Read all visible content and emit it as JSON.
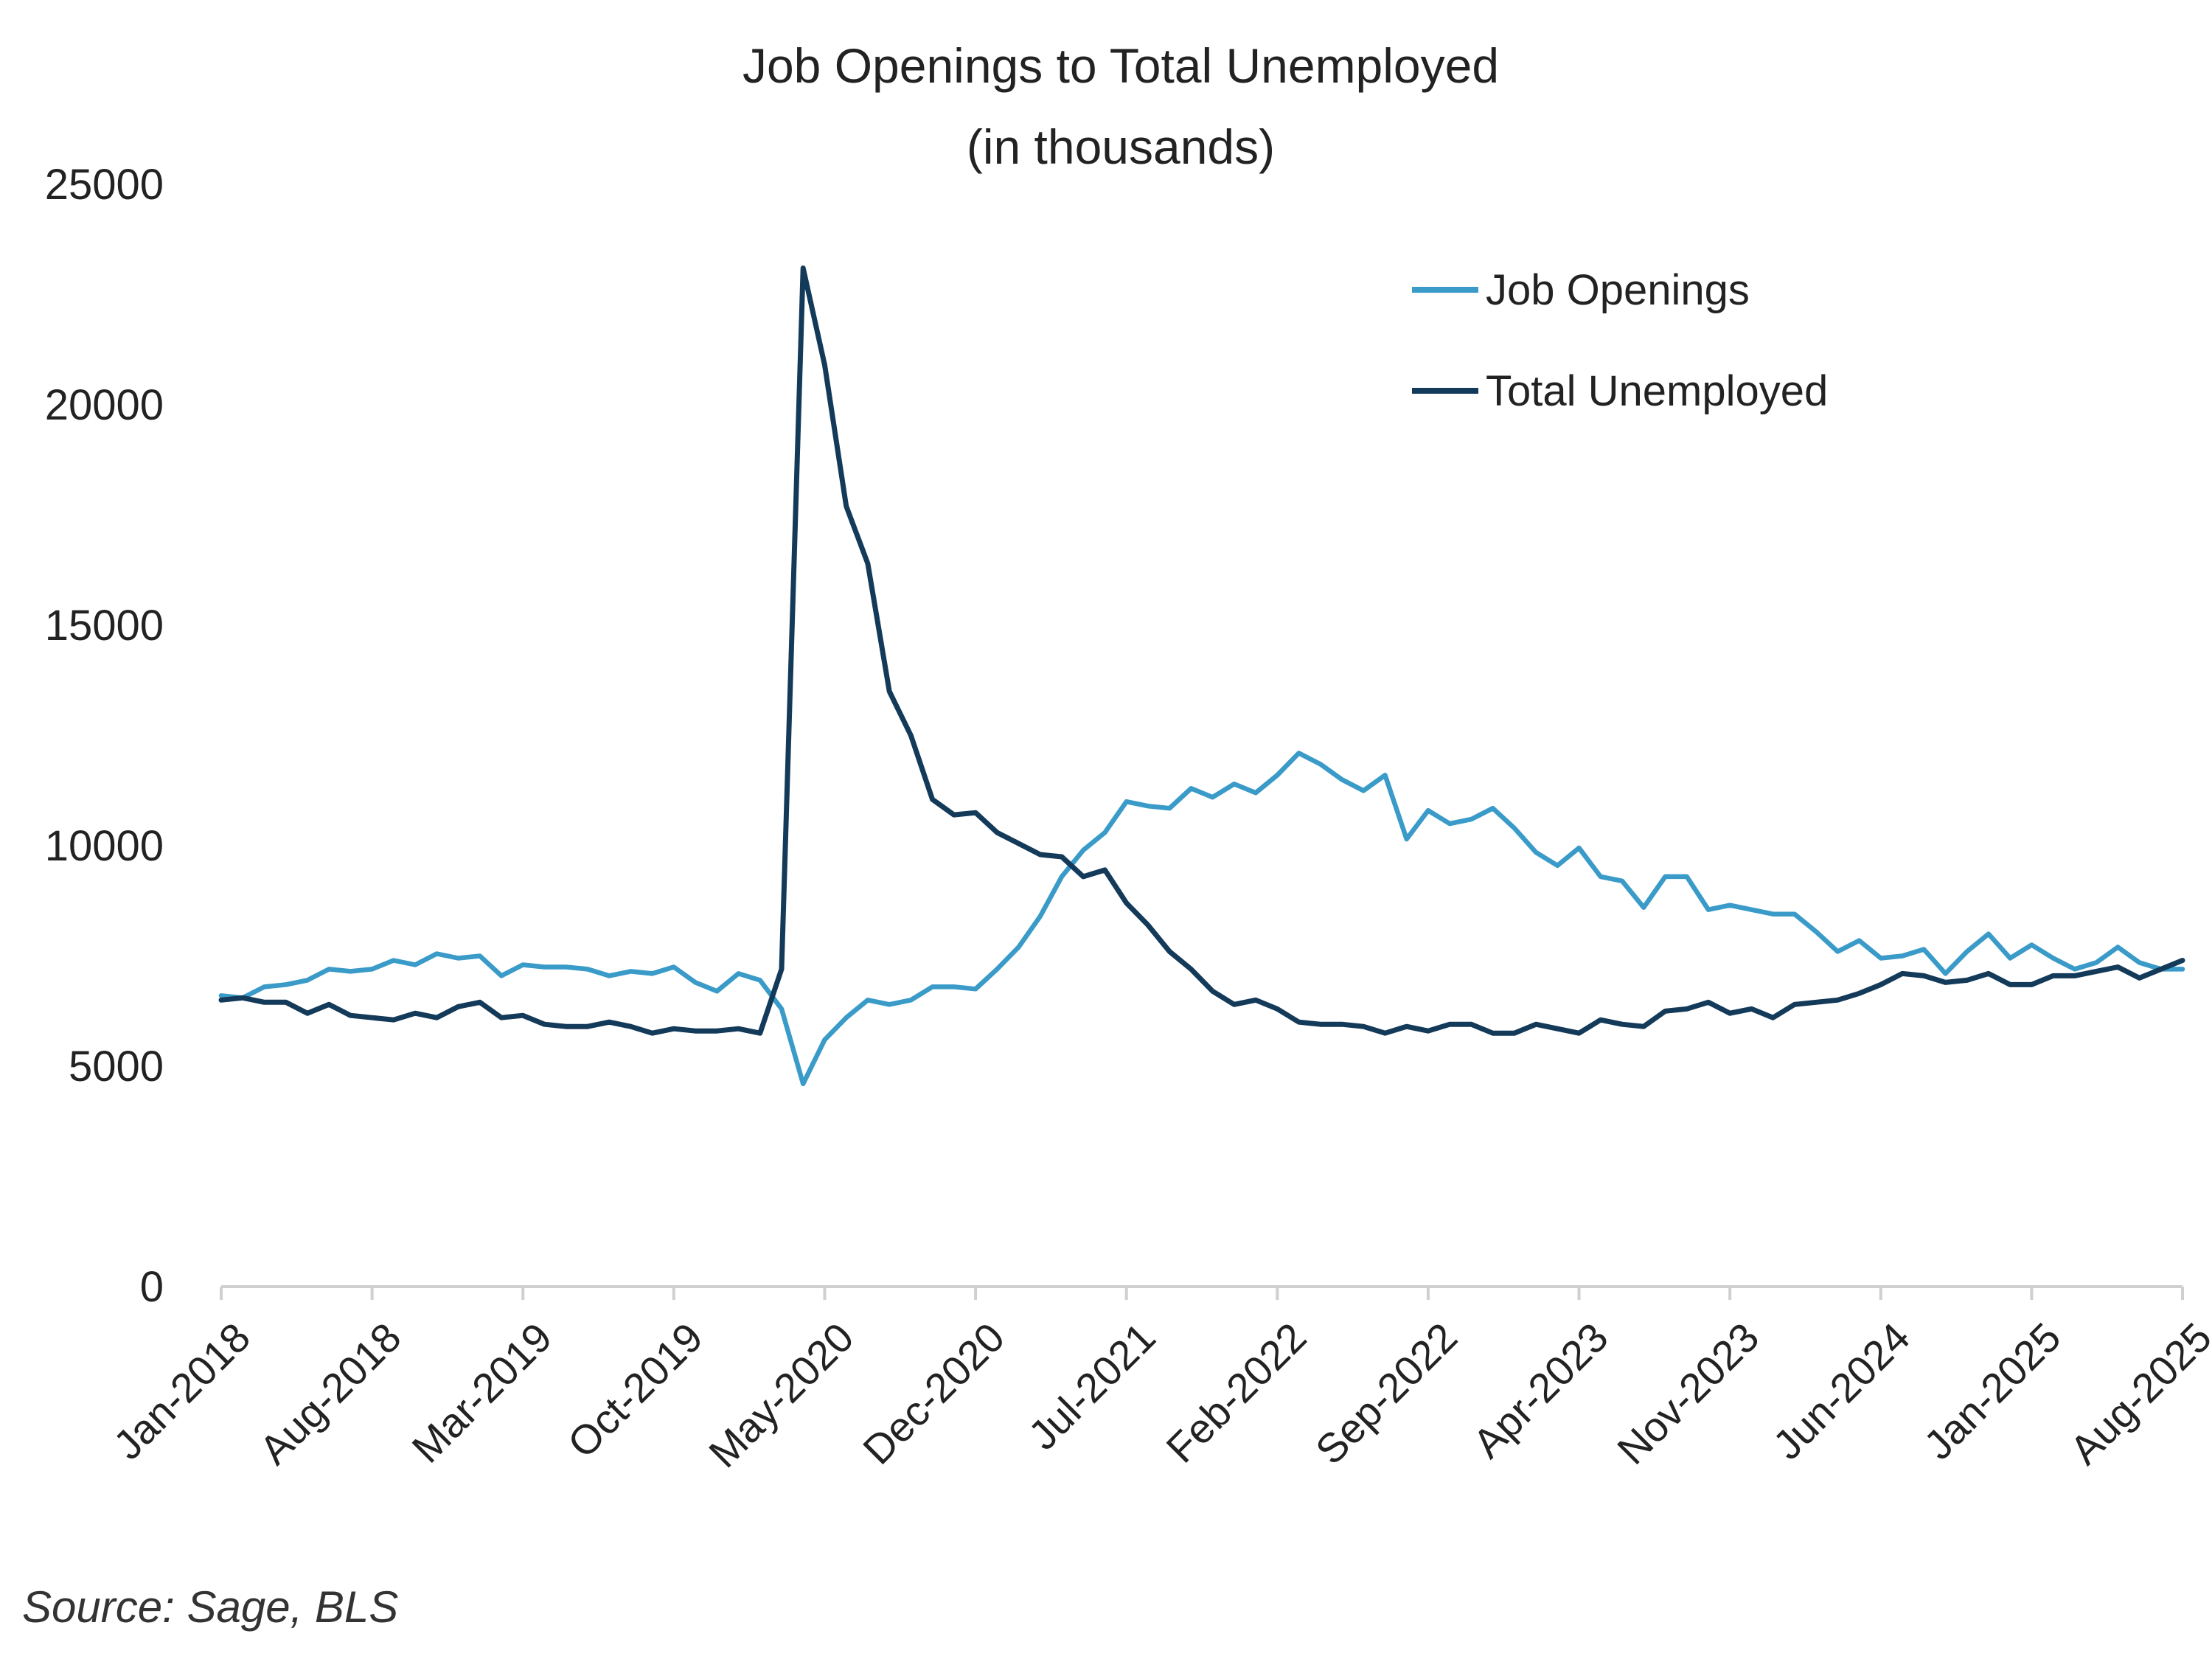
{
  "chart_data": {
    "type": "line",
    "title": "Job Openings to Total Unemployed",
    "subtitle": "(in thousands)",
    "xlabel": "",
    "ylabel": "",
    "ylim": [
      0,
      25000
    ],
    "yticks": [
      0,
      5000,
      10000,
      15000,
      20000,
      25000
    ],
    "x_start": "Jan-2018",
    "x_end": "Aug-2025",
    "xtick_labels": [
      "Jan-2018",
      "Aug-2018",
      "Mar-2019",
      "Oct-2019",
      "May-2020",
      "Dec-2020",
      "Jul-2021",
      "Feb-2022",
      "Sep-2022",
      "Apr-2023",
      "Nov-2023",
      "Jun-2024",
      "Jan-2025",
      "Aug-2025"
    ],
    "legend_position": "top-right",
    "grid": false,
    "series": [
      {
        "name": "Job Openings",
        "color": "#3a9bc9",
        "values": [
          6600,
          6550,
          6800,
          6850,
          6950,
          7200,
          7150,
          7200,
          7400,
          7300,
          7550,
          7450,
          7500,
          7050,
          7300,
          7250,
          7250,
          7200,
          7050,
          7150,
          7100,
          7250,
          6900,
          6700,
          7100,
          6950,
          6300,
          4600,
          5600,
          6100,
          6500,
          6400,
          6500,
          6800,
          6800,
          6750,
          7200,
          7700,
          8400,
          9300,
          9900,
          10300,
          11000,
          10900,
          10850,
          11300,
          11100,
          11400,
          11200,
          11600,
          12100,
          11850,
          11500,
          11250,
          11600,
          10150,
          10800,
          10500,
          10600,
          10850,
          10400,
          9850,
          9550,
          9950,
          9300,
          9200,
          8600,
          9300,
          9300,
          8550,
          8650,
          8550,
          8450,
          8450,
          8050,
          7600,
          7850,
          7450,
          7500,
          7650,
          7100,
          7600,
          8000,
          7450,
          7750,
          7450,
          7200,
          7350,
          7700,
          7350,
          7200,
          7200
        ]
      },
      {
        "name": "Total Unemployed",
        "color": "#143a5a",
        "values": [
          6500,
          6550,
          6450,
          6450,
          6200,
          6400,
          6150,
          6100,
          6050,
          6200,
          6100,
          6350,
          6450,
          6100,
          6150,
          5950,
          5900,
          5900,
          6000,
          5900,
          5750,
          5850,
          5800,
          5800,
          5850,
          5750,
          7200,
          23100,
          20900,
          17700,
          16400,
          13500,
          12500,
          11050,
          10700,
          10750,
          10300,
          10050,
          9800,
          9750,
          9300,
          9450,
          8700,
          8200,
          7600,
          7200,
          6700,
          6400,
          6500,
          6300,
          6000,
          5950,
          5950,
          5900,
          5750,
          5900,
          5800,
          5950,
          5950,
          5750,
          5750,
          5950,
          5850,
          5750,
          6050,
          5950,
          5900,
          6250,
          6300,
          6450,
          6200,
          6300,
          6100,
          6400,
          6450,
          6500,
          6650,
          6850,
          7100,
          7050,
          6900,
          6950,
          7100,
          6850,
          6850,
          7050,
          7050,
          7150,
          7250,
          7000,
          7200,
          7400
        ]
      }
    ]
  },
  "source": "Source: Sage, BLS"
}
